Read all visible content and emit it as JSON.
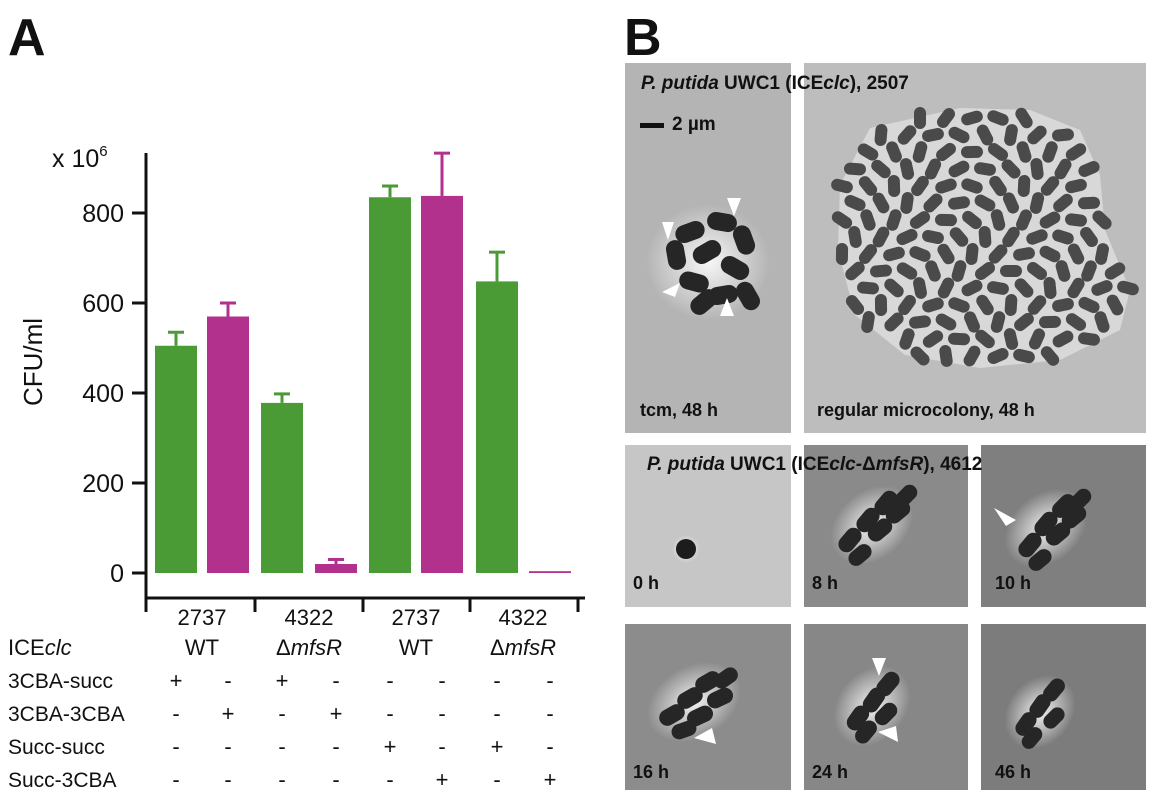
{
  "panel_a": {
    "label": "A",
    "multiplier": "x 10",
    "multiplier_exp": "6",
    "chart_data": {
      "type": "bar",
      "ylabel": "CFU/ml",
      "ylim": [
        0,
        900
      ],
      "yticks": [
        0,
        200,
        400,
        600,
        800
      ],
      "colors": {
        "green": "#4a9b35",
        "magenta": "#b2318c"
      },
      "bars": [
        {
          "value": 505,
          "error": 30,
          "color": "green"
        },
        {
          "value": 570,
          "error": 30,
          "color": "magenta"
        },
        {
          "value": 378,
          "error": 20,
          "color": "green"
        },
        {
          "value": 20,
          "error": 10,
          "color": "magenta"
        },
        {
          "value": 835,
          "error": 25,
          "color": "green"
        },
        {
          "value": 838,
          "error": 95,
          "color": "magenta"
        },
        {
          "value": 648,
          "error": 65,
          "color": "green"
        },
        {
          "value": 4,
          "error": 0,
          "color": "magenta"
        }
      ],
      "groups": [
        {
          "number": "2737",
          "genotype_prefix": "",
          "genotype": "WT"
        },
        {
          "number": "4322",
          "genotype_prefix": "Δ",
          "genotype": "mfsR"
        },
        {
          "number": "2737",
          "genotype_prefix": "",
          "genotype": "WT"
        },
        {
          "number": "4322",
          "genotype_prefix": "Δ",
          "genotype": "mfsR"
        }
      ],
      "ice_label_prefix": "ICE",
      "ice_label_italic": "clc",
      "conditions": [
        {
          "label": "3CBA-succ",
          "marks": [
            "+",
            "-",
            "+",
            "-",
            "-",
            "-",
            "-",
            "-"
          ]
        },
        {
          "label": "3CBA-3CBA",
          "marks": [
            "-",
            "+",
            "-",
            "+",
            "-",
            "-",
            "-",
            "-"
          ]
        },
        {
          "label": "Succ-succ",
          "marks": [
            "-",
            "-",
            "-",
            "-",
            "+",
            "-",
            "+",
            "-"
          ]
        },
        {
          "label": "Succ-3CBA",
          "marks": [
            "-",
            "-",
            "-",
            "-",
            "-",
            "+",
            "-",
            "+"
          ]
        }
      ]
    }
  },
  "panel_b": {
    "label": "B",
    "top_strain": {
      "italic": "P. putida",
      "mid": " UWC1 (ICE",
      "italic2": "clc",
      "tail": "), 2507"
    },
    "scale_bar": "2 µm",
    "top_images": [
      {
        "label": "tcm, 48 h"
      },
      {
        "label": "regular microcolony, 48 h"
      }
    ],
    "bottom_strain": {
      "italic": "P. putida",
      "mid": " UWC1 (ICE",
      "italic2": "clc-",
      "tail": "), 4612",
      "delta": "Δ",
      "gene": "mfsR"
    },
    "time_series": [
      {
        "label": "0 h"
      },
      {
        "label": "8 h"
      },
      {
        "label": "10 h"
      },
      {
        "label": "16 h"
      },
      {
        "label": "24 h"
      },
      {
        "label": "46 h"
      }
    ]
  }
}
